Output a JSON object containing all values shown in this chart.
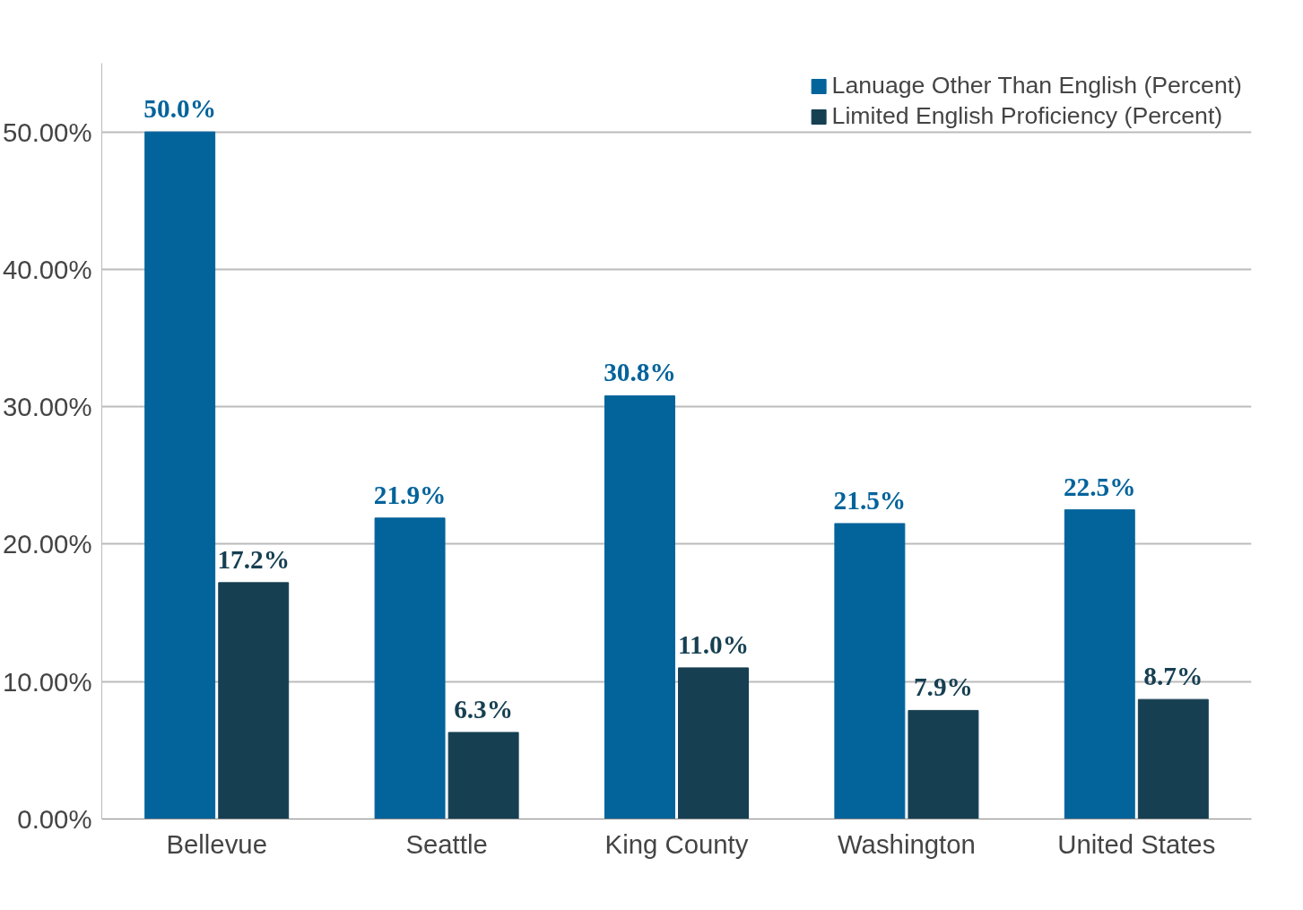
{
  "chart_data": {
    "type": "bar",
    "categories": [
      "Bellevue",
      "Seattle",
      "King County",
      "Washington",
      "United States"
    ],
    "series": [
      {
        "name": "Lanuage Other Than English (Percent)",
        "color": "#03639b",
        "values": [
          50.0,
          21.9,
          30.8,
          21.5,
          22.5
        ],
        "value_labels": [
          "50.0%",
          "21.9%",
          "30.8%",
          "21.5%",
          "22.5%"
        ]
      },
      {
        "name": "Limited English Proficiency (Percent)",
        "color": "#163f52",
        "values": [
          17.2,
          6.3,
          11.0,
          7.9,
          8.7
        ],
        "value_labels": [
          "17.2%",
          "6.3%",
          "11.0%",
          "7.9%",
          "8.7%"
        ]
      }
    ],
    "ylim": [
      0,
      55
    ],
    "yticks": [
      {
        "value": 0,
        "label": "0.00%"
      },
      {
        "value": 10,
        "label": "10.00%"
      },
      {
        "value": 20,
        "label": "20.00%"
      },
      {
        "value": 30,
        "label": "30.00%"
      },
      {
        "value": 40,
        "label": "40.00%"
      },
      {
        "value": 50,
        "label": "50.00%"
      }
    ],
    "grid": "y",
    "legend": "top right"
  }
}
